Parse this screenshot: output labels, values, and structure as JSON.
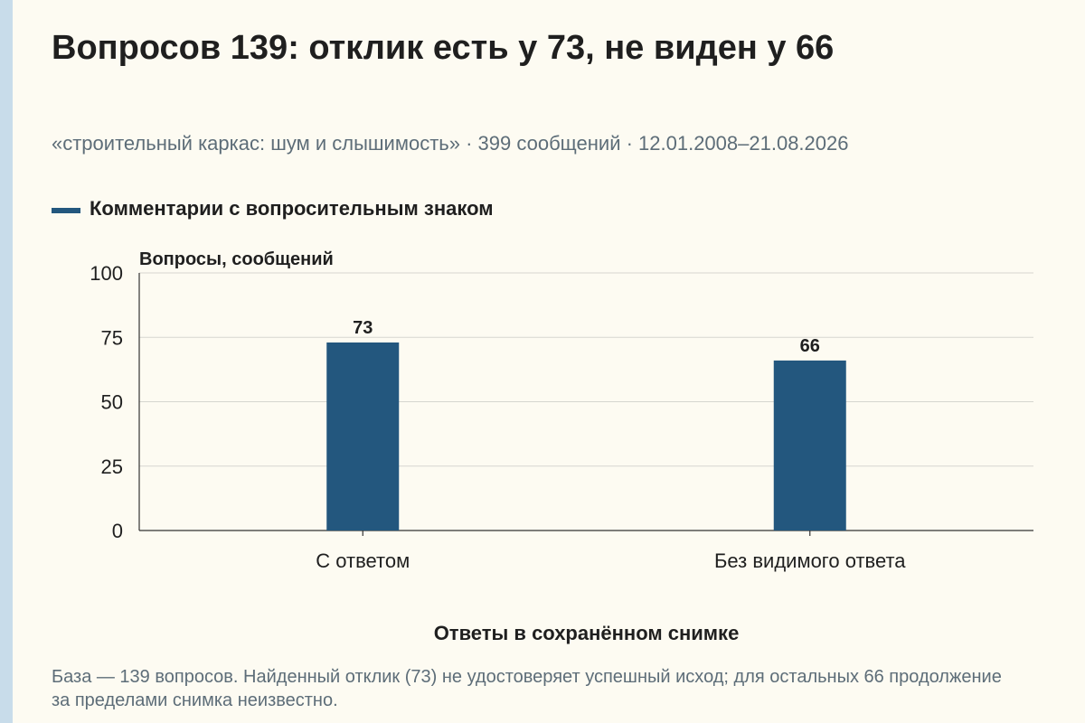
{
  "chart_data": {
    "type": "bar",
    "title": "Вопросов 139: отклик есть у 73, не виден у 66",
    "subtitle": "«строительный каркас: шум и слышимость» · 399 сообщений · 12.01.2008–21.08.2026",
    "series": [
      {
        "name": "Комментарии с вопросительным знаком",
        "values": [
          73,
          66
        ]
      }
    ],
    "categories": [
      "С ответом",
      "Без видимого ответа"
    ],
    "value_labels": [
      "73",
      "66"
    ],
    "ylabel": "Вопросы, сообщений",
    "xlabel": "Ответы в сохранённом снимке",
    "ylim": [
      0,
      100
    ],
    "yticks": [
      0,
      25,
      50,
      75,
      100
    ],
    "ytick_labels": [
      "0",
      "25",
      "50",
      "75",
      "100"
    ],
    "grid": true,
    "legend_position": "top-left",
    "colors": {
      "bar": "#23577e",
      "grid": "#d6d6d0",
      "axis": "#333333"
    }
  },
  "footnote": "База — 139 вопросов. Найденный отклик (73) не удостоверяет успешный исход; для остальных 66 продолжение за пределами снимка неизвестно."
}
